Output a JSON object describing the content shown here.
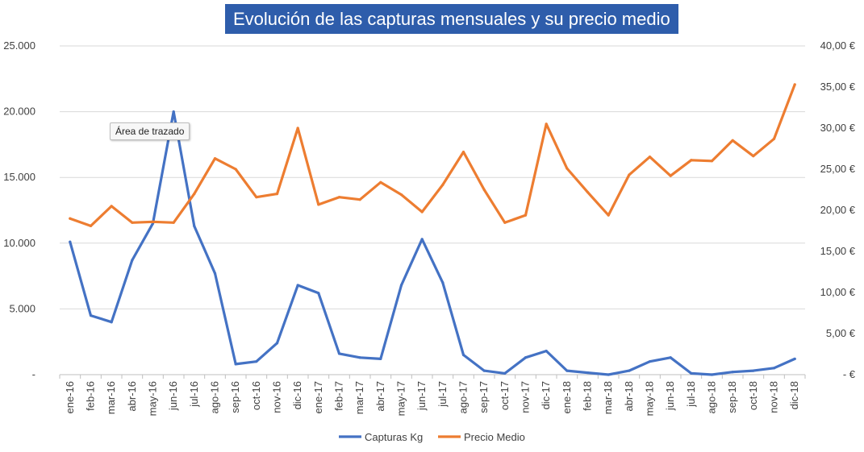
{
  "chart_data": {
    "type": "line",
    "title": "Evolución de las capturas mensuales y su precio medio",
    "categories": [
      "ene-16",
      "feb-16",
      "mar-16",
      "abr-16",
      "may-16",
      "jun-16",
      "jul-16",
      "ago-16",
      "sep-16",
      "oct-16",
      "nov-16",
      "dic-16",
      "ene-17",
      "feb-17",
      "mar-17",
      "abr-17",
      "may-17",
      "jun-17",
      "jul-17",
      "ago-17",
      "sep-17",
      "oct-17",
      "nov-17",
      "dic-17",
      "ene-18",
      "feb-18",
      "mar-18",
      "abr-18",
      "may-18",
      "jun-18",
      "jul-18",
      "ago-18",
      "sep-18",
      "oct-18",
      "nov-18",
      "dic-18"
    ],
    "series": [
      {
        "name": "Capturas Kg",
        "axis": "left",
        "color": "#4472c4",
        "values": [
          10100,
          4500,
          4000,
          8700,
          11500,
          20000,
          11300,
          7700,
          800,
          1000,
          2400,
          6800,
          6200,
          1600,
          1300,
          1200,
          6800,
          10300,
          7000,
          1500,
          300,
          100,
          1300,
          1800,
          300,
          150,
          0,
          300,
          1000,
          1300,
          100,
          0,
          200,
          300,
          500,
          1200
        ]
      },
      {
        "name": "Precio Medio",
        "axis": "right",
        "color": "#ed7d31",
        "values": [
          19.0,
          18.1,
          20.5,
          18.5,
          18.6,
          18.5,
          22.0,
          26.3,
          25.0,
          21.6,
          22.0,
          30.0,
          20.7,
          21.6,
          21.3,
          23.4,
          21.9,
          19.8,
          23.1,
          27.1,
          22.5,
          18.5,
          19.4,
          30.5,
          25.1,
          22.2,
          19.4,
          24.3,
          26.5,
          24.2,
          26.1,
          26.0,
          28.5,
          26.6,
          28.7,
          35.3
        ]
      }
    ],
    "y_left": {
      "range": [
        0,
        25000
      ],
      "ticks": [
        0,
        5000,
        10000,
        15000,
        20000,
        25000
      ],
      "tick_labels": [
        "-",
        "5.000",
        "10.000",
        "15.000",
        "20.000",
        "25.000"
      ]
    },
    "y_right": {
      "range": [
        0,
        40
      ],
      "ticks": [
        0,
        5,
        10,
        15,
        20,
        25,
        30,
        35,
        40
      ],
      "tick_labels": [
        "- €",
        "5,00 €",
        "10,00 €",
        "15,00 €",
        "20,00 €",
        "25,00 €",
        "30,00 €",
        "35,00 €",
        "40,00 €"
      ]
    },
    "gridlines": true,
    "legend_position": "bottom",
    "tooltip": "Área de trazado"
  }
}
